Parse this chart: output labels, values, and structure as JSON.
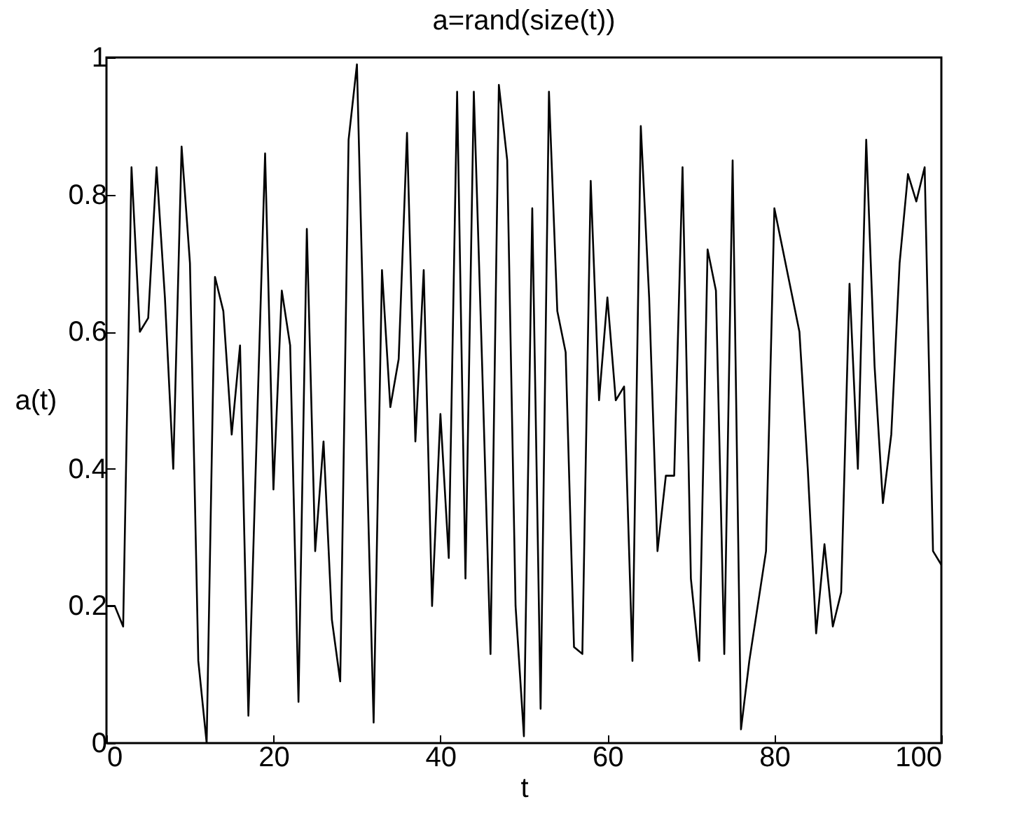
{
  "chart_data": {
    "type": "line",
    "title": "a=rand(size(t))",
    "xlabel": "t",
    "ylabel": "a(t)",
    "x": [
      0,
      1,
      2,
      3,
      4,
      5,
      6,
      7,
      8,
      9,
      10,
      11,
      12,
      13,
      14,
      15,
      16,
      17,
      18,
      19,
      20,
      21,
      22,
      23,
      24,
      25,
      26,
      27,
      28,
      29,
      30,
      31,
      32,
      33,
      34,
      35,
      36,
      37,
      38,
      39,
      40,
      41,
      42,
      43,
      44,
      45,
      46,
      47,
      48,
      49,
      50,
      51,
      52,
      53,
      54,
      55,
      56,
      57,
      58,
      59,
      60,
      61,
      62,
      63,
      64,
      65,
      66,
      67,
      68,
      69,
      70,
      71,
      72,
      73,
      74,
      75,
      76,
      77,
      78,
      79,
      80,
      81,
      82,
      83,
      84,
      85,
      86,
      87,
      88,
      89,
      90,
      91,
      92,
      93,
      94,
      95,
      96,
      97,
      98,
      99,
      100
    ],
    "series": [
      {
        "color": "#000000",
        "values": [
          0.2,
          0.2,
          0.17,
          0.84,
          0.6,
          0.62,
          0.84,
          0.65,
          0.4,
          0.87,
          0.7,
          0.12,
          0.0,
          0.68,
          0.63,
          0.45,
          0.58,
          0.04,
          0.45,
          0.86,
          0.37,
          0.66,
          0.58,
          0.06,
          0.75,
          0.28,
          0.44,
          0.18,
          0.09,
          0.88,
          0.99,
          0.5,
          0.03,
          0.69,
          0.49,
          0.56,
          0.89,
          0.44,
          0.69,
          0.2,
          0.48,
          0.27,
          0.95,
          0.24,
          0.95,
          0.55,
          0.13,
          0.96,
          0.85,
          0.2,
          0.01,
          0.78,
          0.05,
          0.95,
          0.63,
          0.57,
          0.14,
          0.13,
          0.82,
          0.5,
          0.65,
          0.5,
          0.52,
          0.12,
          0.9,
          0.65,
          0.28,
          0.39,
          0.39,
          0.84,
          0.24,
          0.12,
          0.72,
          0.66,
          0.13,
          0.85,
          0.02,
          0.12,
          0.2,
          0.28,
          0.78,
          0.72,
          0.66,
          0.6,
          0.4,
          0.16,
          0.29,
          0.17,
          0.22,
          0.67,
          0.4,
          0.88,
          0.55,
          0.35,
          0.45,
          0.7,
          0.83,
          0.79,
          0.84,
          0.28,
          0.26
        ]
      }
    ],
    "xlim": [
      0,
      100
    ],
    "xticks": [
      0,
      20,
      40,
      60,
      80,
      100
    ],
    "ylim": [
      0,
      1
    ],
    "yticks": [
      0,
      0.2,
      0.4,
      0.6,
      0.8,
      1
    ],
    "grid": false
  }
}
